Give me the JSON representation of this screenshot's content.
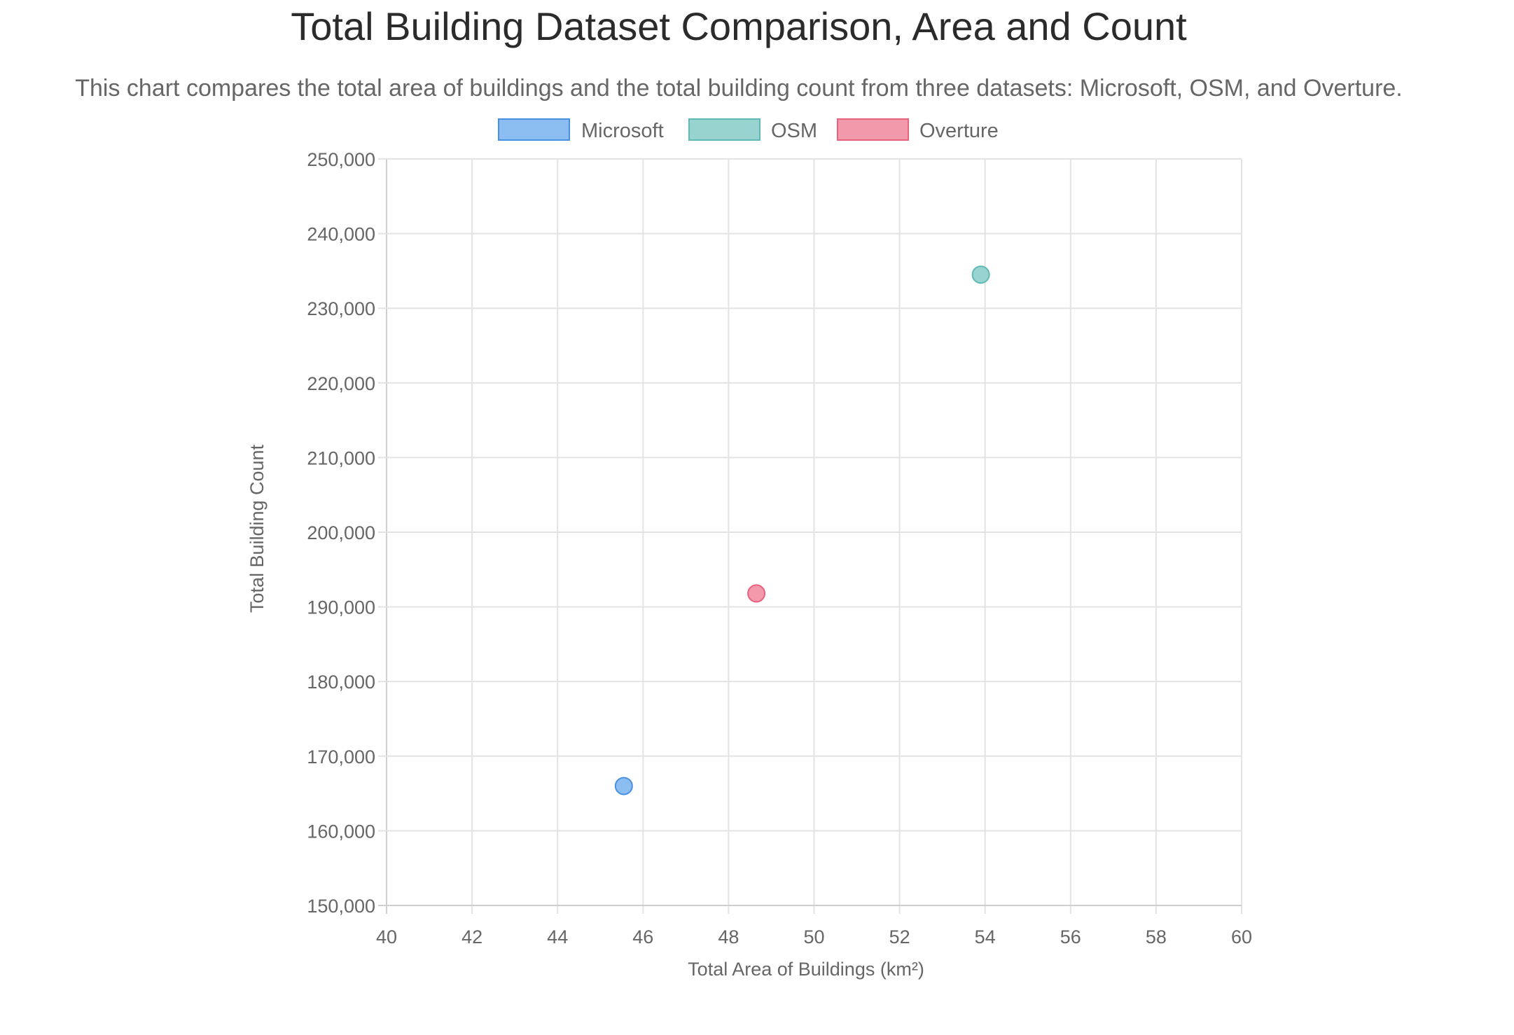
{
  "title": "Total Building Dataset Comparison, Area and Count",
  "subtitle": "This chart compares the total area of buildings and the total building count from three datasets: Microsoft, OSM, and Overture.",
  "chart_data": {
    "type": "scatter",
    "title": "Total Building Dataset Comparison, Area and Count",
    "xlabel": "Total Area of Buildings (km²)",
    "ylabel": "Total Building Count",
    "xlim": [
      40,
      60
    ],
    "ylim": [
      150000,
      250000
    ],
    "x_ticks": [
      "40",
      "42",
      "44",
      "46",
      "48",
      "50",
      "52",
      "54",
      "56",
      "58",
      "60"
    ],
    "y_ticks": [
      "250,000",
      "240,000",
      "230,000",
      "220,000",
      "210,000",
      "200,000",
      "190,000",
      "180,000",
      "170,000",
      "160,000",
      "150,000"
    ],
    "grid": true,
    "legend_position": "top",
    "series": [
      {
        "name": "Microsoft",
        "x": 45.55,
        "y": 166000,
        "color": "#4a90e2",
        "fill": "#8cbdf0"
      },
      {
        "name": "OSM",
        "x": 53.9,
        "y": 234500,
        "color": "#5fbab5",
        "fill": "#99d3cf"
      },
      {
        "name": "Overture",
        "x": 48.65,
        "y": 191800,
        "color": "#e8617d",
        "fill": "#f29aab"
      }
    ]
  }
}
